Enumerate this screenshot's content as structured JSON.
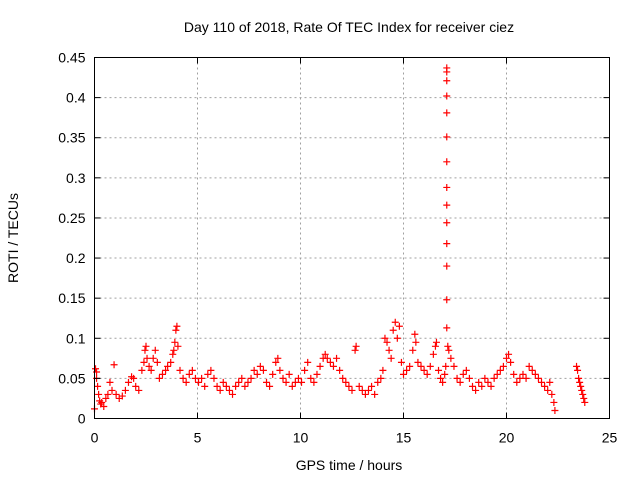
{
  "chart_data": {
    "type": "scatter",
    "title": "Day 110 of 2018, Rate Of TEC Index for receiver ciez",
    "xlabel": "GPS time / hours",
    "ylabel": "ROTI / TECUs",
    "xlim": [
      0,
      25
    ],
    "ylim": [
      0,
      0.45
    ],
    "xticks": [
      0,
      5,
      10,
      15,
      20,
      25
    ],
    "xtick_labels": [
      "0",
      "5",
      "10",
      "15",
      "20",
      "25"
    ],
    "yticks": [
      0,
      0.05,
      0.1,
      0.15,
      0.2,
      0.25,
      0.3,
      0.35,
      0.4,
      0.45
    ],
    "ytick_labels": [
      "0",
      "0.05",
      "0.1",
      "0.15",
      "0.2",
      "0.25",
      "0.3",
      "0.35",
      "0.4",
      "0.45"
    ],
    "grid": true,
    "marker": "+",
    "marker_color": "#ff0000",
    "series": [
      {
        "name": "ROTI",
        "points": [
          [
            0.0,
            0.012
          ],
          [
            0.05,
            0.062
          ],
          [
            0.1,
            0.058
          ],
          [
            0.1,
            0.05
          ],
          [
            0.15,
            0.04
          ],
          [
            0.2,
            0.03
          ],
          [
            0.25,
            0.022
          ],
          [
            0.3,
            0.018
          ],
          [
            0.35,
            0.02
          ],
          [
            0.45,
            0.015
          ],
          [
            0.55,
            0.025
          ],
          [
            0.65,
            0.03
          ],
          [
            0.75,
            0.045
          ],
          [
            0.85,
            0.035
          ],
          [
            0.95,
            0.067
          ],
          [
            1.05,
            0.03
          ],
          [
            1.2,
            0.025
          ],
          [
            1.35,
            0.028
          ],
          [
            1.5,
            0.035
          ],
          [
            1.65,
            0.045
          ],
          [
            1.8,
            0.052
          ],
          [
            1.9,
            0.05
          ],
          [
            2.0,
            0.04
          ],
          [
            2.15,
            0.035
          ],
          [
            2.3,
            0.06
          ],
          [
            2.4,
            0.07
          ],
          [
            2.45,
            0.085
          ],
          [
            2.5,
            0.09
          ],
          [
            2.55,
            0.075
          ],
          [
            2.65,
            0.065
          ],
          [
            2.75,
            0.06
          ],
          [
            2.85,
            0.075
          ],
          [
            2.95,
            0.085
          ],
          [
            3.05,
            0.07
          ],
          [
            3.15,
            0.05
          ],
          [
            3.3,
            0.055
          ],
          [
            3.45,
            0.06
          ],
          [
            3.55,
            0.065
          ],
          [
            3.7,
            0.07
          ],
          [
            3.8,
            0.08
          ],
          [
            3.85,
            0.085
          ],
          [
            3.9,
            0.095
          ],
          [
            3.95,
            0.11
          ],
          [
            4.0,
            0.115
          ],
          [
            4.05,
            0.09
          ],
          [
            4.15,
            0.06
          ],
          [
            4.3,
            0.05
          ],
          [
            4.45,
            0.045
          ],
          [
            4.6,
            0.055
          ],
          [
            4.75,
            0.06
          ],
          [
            4.9,
            0.05
          ],
          [
            5.05,
            0.045
          ],
          [
            5.2,
            0.05
          ],
          [
            5.35,
            0.04
          ],
          [
            5.5,
            0.055
          ],
          [
            5.65,
            0.06
          ],
          [
            5.8,
            0.05
          ],
          [
            5.95,
            0.04
          ],
          [
            6.1,
            0.035
          ],
          [
            6.25,
            0.045
          ],
          [
            6.4,
            0.04
          ],
          [
            6.55,
            0.035
          ],
          [
            6.7,
            0.03
          ],
          [
            6.85,
            0.04
          ],
          [
            7.0,
            0.045
          ],
          [
            7.15,
            0.05
          ],
          [
            7.3,
            0.04
          ],
          [
            7.45,
            0.045
          ],
          [
            7.6,
            0.05
          ],
          [
            7.75,
            0.06
          ],
          [
            7.9,
            0.055
          ],
          [
            8.05,
            0.065
          ],
          [
            8.2,
            0.06
          ],
          [
            8.35,
            0.045
          ],
          [
            8.5,
            0.04
          ],
          [
            8.65,
            0.055
          ],
          [
            8.8,
            0.07
          ],
          [
            8.9,
            0.075
          ],
          [
            9.0,
            0.06
          ],
          [
            9.15,
            0.05
          ],
          [
            9.3,
            0.045
          ],
          [
            9.45,
            0.055
          ],
          [
            9.6,
            0.04
          ],
          [
            9.75,
            0.045
          ],
          [
            9.9,
            0.05
          ],
          [
            10.05,
            0.045
          ],
          [
            10.2,
            0.06
          ],
          [
            10.35,
            0.07
          ],
          [
            10.5,
            0.05
          ],
          [
            10.65,
            0.045
          ],
          [
            10.8,
            0.055
          ],
          [
            10.95,
            0.065
          ],
          [
            11.1,
            0.075
          ],
          [
            11.2,
            0.08
          ],
          [
            11.3,
            0.075
          ],
          [
            11.45,
            0.07
          ],
          [
            11.6,
            0.065
          ],
          [
            11.75,
            0.075
          ],
          [
            11.9,
            0.06
          ],
          [
            12.05,
            0.05
          ],
          [
            12.2,
            0.045
          ],
          [
            12.35,
            0.04
          ],
          [
            12.5,
            0.035
          ],
          [
            12.65,
            0.085
          ],
          [
            12.7,
            0.09
          ],
          [
            12.85,
            0.04
          ],
          [
            13.0,
            0.035
          ],
          [
            13.15,
            0.03
          ],
          [
            13.3,
            0.035
          ],
          [
            13.45,
            0.04
          ],
          [
            13.6,
            0.03
          ],
          [
            13.75,
            0.045
          ],
          [
            13.9,
            0.05
          ],
          [
            14.0,
            0.06
          ],
          [
            14.1,
            0.1
          ],
          [
            14.2,
            0.095
          ],
          [
            14.3,
            0.085
          ],
          [
            14.4,
            0.075
          ],
          [
            14.5,
            0.11
          ],
          [
            14.6,
            0.12
          ],
          [
            14.7,
            0.1
          ],
          [
            14.8,
            0.115
          ],
          [
            14.9,
            0.07
          ],
          [
            15.0,
            0.055
          ],
          [
            15.15,
            0.06
          ],
          [
            15.3,
            0.065
          ],
          [
            15.45,
            0.085
          ],
          [
            15.55,
            0.105
          ],
          [
            15.6,
            0.095
          ],
          [
            15.7,
            0.07
          ],
          [
            15.85,
            0.065
          ],
          [
            16.0,
            0.06
          ],
          [
            16.15,
            0.055
          ],
          [
            16.3,
            0.065
          ],
          [
            16.45,
            0.08
          ],
          [
            16.55,
            0.09
          ],
          [
            16.6,
            0.095
          ],
          [
            16.7,
            0.06
          ],
          [
            16.8,
            0.05
          ],
          [
            16.9,
            0.045
          ],
          [
            17.0,
            0.055
          ],
          [
            17.05,
            0.065
          ],
          [
            17.1,
            0.113
          ],
          [
            17.1,
            0.148
          ],
          [
            17.1,
            0.19
          ],
          [
            17.1,
            0.218
          ],
          [
            17.1,
            0.244
          ],
          [
            17.1,
            0.266
          ],
          [
            17.1,
            0.288
          ],
          [
            17.1,
            0.32
          ],
          [
            17.1,
            0.351
          ],
          [
            17.1,
            0.381
          ],
          [
            17.1,
            0.402
          ],
          [
            17.1,
            0.421
          ],
          [
            17.1,
            0.432
          ],
          [
            17.1,
            0.437
          ],
          [
            17.15,
            0.09
          ],
          [
            17.2,
            0.085
          ],
          [
            17.3,
            0.075
          ],
          [
            17.45,
            0.065
          ],
          [
            17.6,
            0.05
          ],
          [
            17.75,
            0.045
          ],
          [
            17.9,
            0.055
          ],
          [
            18.05,
            0.06
          ],
          [
            18.2,
            0.05
          ],
          [
            18.35,
            0.04
          ],
          [
            18.5,
            0.035
          ],
          [
            18.65,
            0.045
          ],
          [
            18.8,
            0.04
          ],
          [
            18.95,
            0.05
          ],
          [
            19.1,
            0.045
          ],
          [
            19.25,
            0.04
          ],
          [
            19.4,
            0.05
          ],
          [
            19.55,
            0.055
          ],
          [
            19.7,
            0.06
          ],
          [
            19.85,
            0.065
          ],
          [
            20.0,
            0.075
          ],
          [
            20.1,
            0.08
          ],
          [
            20.2,
            0.07
          ],
          [
            20.35,
            0.055
          ],
          [
            20.5,
            0.045
          ],
          [
            20.65,
            0.05
          ],
          [
            20.8,
            0.055
          ],
          [
            20.95,
            0.05
          ],
          [
            21.1,
            0.065
          ],
          [
            21.25,
            0.06
          ],
          [
            21.4,
            0.055
          ],
          [
            21.55,
            0.05
          ],
          [
            21.7,
            0.045
          ],
          [
            21.85,
            0.04
          ],
          [
            22.0,
            0.035
          ],
          [
            22.1,
            0.045
          ],
          [
            22.2,
            0.03
          ],
          [
            22.3,
            0.02
          ],
          [
            22.35,
            0.01
          ],
          [
            23.4,
            0.065
          ],
          [
            23.45,
            0.06
          ],
          [
            23.5,
            0.05
          ],
          [
            23.55,
            0.045
          ],
          [
            23.6,
            0.04
          ],
          [
            23.65,
            0.035
          ],
          [
            23.7,
            0.03
          ],
          [
            23.75,
            0.025
          ],
          [
            23.8,
            0.02
          ]
        ]
      }
    ]
  }
}
